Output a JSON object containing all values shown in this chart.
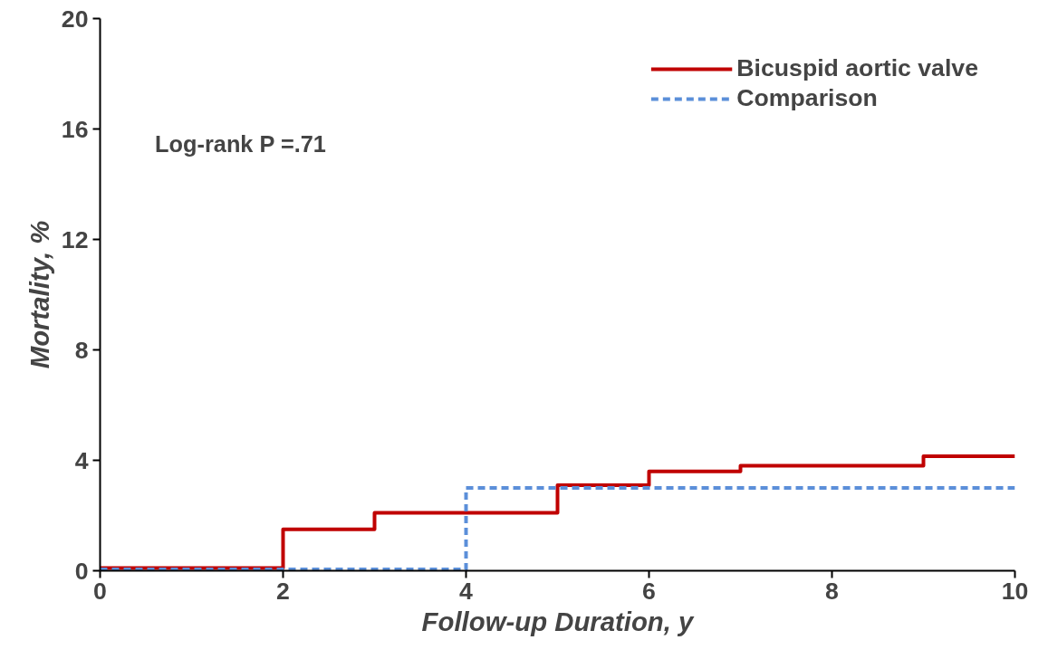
{
  "chart_data": {
    "type": "step",
    "xlabel": "Follow-up Duration, y",
    "ylabel": "Mortality, %",
    "xlim": [
      0,
      10
    ],
    "ylim": [
      0,
      20
    ],
    "xticks": [
      0,
      2,
      4,
      6,
      8,
      10
    ],
    "yticks": [
      0,
      4,
      8,
      12,
      16,
      20
    ],
    "grid": false,
    "legend": "top right",
    "annotations": [
      {
        "text": "Log-rank P =.71"
      }
    ],
    "series": [
      {
        "name": "Bicuspid aortic valve",
        "color": "#c00000",
        "line_style": "solid",
        "x": [
          0,
          2,
          3,
          5,
          6,
          7,
          9,
          10
        ],
        "values": [
          0.1,
          1.5,
          2.1,
          3.1,
          3.6,
          3.8,
          4.15,
          4.15
        ]
      },
      {
        "name": "Comparison",
        "color": "#5b8fd9",
        "line_style": "dashed",
        "x": [
          0,
          4,
          10
        ],
        "values": [
          0.05,
          3.0,
          3.0
        ]
      }
    ]
  }
}
